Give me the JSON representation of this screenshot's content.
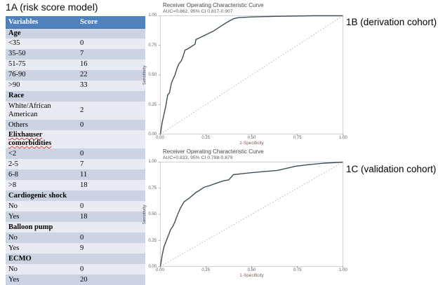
{
  "colors": {
    "table_header_bg": "#4f81bd",
    "band_dark": "#ccd3e2",
    "band_light": "#e9ebf3",
    "curve": "#3b4e57",
    "diagonal": "#a8a8a8",
    "plot_border": "#c8c8c8",
    "axis_label_text": "#7d5a50",
    "spellcheck": "#e03c31"
  },
  "chart_data": [
    {
      "type": "table",
      "title": "1A (risk score model)",
      "columns": [
        "Variables",
        "Score"
      ],
      "rows": [
        {
          "label": "Age",
          "score": "",
          "section": true
        },
        {
          "label": "<35",
          "score": "0"
        },
        {
          "label": "35-50",
          "score": "7"
        },
        {
          "label": "51-75",
          "score": "16"
        },
        {
          "label": "76-90",
          "score": "22"
        },
        {
          "label": ">90",
          "score": "33"
        },
        {
          "label": "Race",
          "score": "",
          "section": true
        },
        {
          "label": "White/African American",
          "score": "2"
        },
        {
          "label": "Others",
          "score": "0"
        },
        {
          "label": "Elixhauser comorbidities",
          "score": "",
          "section": true,
          "spellcheck": true
        },
        {
          "label": "<2",
          "score": "0"
        },
        {
          "label": "2-5",
          "score": "7"
        },
        {
          "label": "6-8",
          "score": "11"
        },
        {
          "label": ">8",
          "score": "18"
        },
        {
          "label": "Cardiogenic shock",
          "score": "",
          "section": true
        },
        {
          "label": "No",
          "score": "0"
        },
        {
          "label": "Yes",
          "score": "18"
        },
        {
          "label": "Balloon pump",
          "score": "",
          "section": true
        },
        {
          "label": "No",
          "score": "0"
        },
        {
          "label": "Yes",
          "score": "9"
        },
        {
          "label": "ECMO",
          "score": "",
          "section": true
        },
        {
          "label": "No",
          "score": "0"
        },
        {
          "label": "Yes",
          "score": "20"
        }
      ]
    },
    {
      "type": "line",
      "panel_label": "1B (derivation cohort)",
      "title": "Receiver Operating Characteristic Curve",
      "subtitle": "AUC=0.862, 95% CI 0.817-0.907",
      "xlabel": "1-Specificity",
      "ylabel": "Sensitivity",
      "xlim": [
        0,
        1
      ],
      "ylim": [
        0,
        1
      ],
      "xticks": [
        "0.00",
        "0.25",
        "0.50",
        "0.75",
        "1.00"
      ],
      "yticks": [
        "0.00",
        "0.25",
        "0.50",
        "0.75",
        "1.00"
      ],
      "legend": "none",
      "grid": false,
      "series": [
        {
          "name": "ROC curve",
          "x": [
            0,
            0.005,
            0.01,
            0.02,
            0.03,
            0.04,
            0.05,
            0.06,
            0.065,
            0.08,
            0.09,
            0.1,
            0.115,
            0.125,
            0.135,
            0.15,
            0.16,
            0.19,
            0.195,
            0.21,
            0.25,
            0.29,
            0.33,
            0.36,
            0.4,
            0.43,
            0.5,
            0.63,
            0.84,
            1.0
          ],
          "y": [
            0,
            0.05,
            0.1,
            0.17,
            0.24,
            0.33,
            0.35,
            0.43,
            0.45,
            0.5,
            0.55,
            0.59,
            0.62,
            0.66,
            0.71,
            0.72,
            0.73,
            0.76,
            0.8,
            0.81,
            0.84,
            0.87,
            0.91,
            0.94,
            0.975,
            0.985,
            0.99,
            0.995,
            1.0,
            1.0
          ]
        },
        {
          "name": "chance reference diagonal",
          "dotted": true,
          "x": [
            0,
            1
          ],
          "y": [
            0,
            1
          ]
        }
      ]
    },
    {
      "type": "line",
      "panel_label": "1C (validation cohort)",
      "title": "Receiver Operating Characteristic Curve",
      "subtitle": "AUC=0.833, 95% CI 0.788-0.879",
      "xlabel": "1-Specificity",
      "ylabel": "Sensitivity",
      "xlim": [
        0,
        1
      ],
      "ylim": [
        0,
        1
      ],
      "xticks": [
        "0.00",
        "0.25",
        "0.50",
        "0.75",
        "1.00"
      ],
      "yticks": [
        "0.00",
        "0.25",
        "0.50",
        "0.75",
        "1.00"
      ],
      "legend": "none",
      "grid": false,
      "series": [
        {
          "name": "ROC curve",
          "x": [
            0,
            0.01,
            0.02,
            0.04,
            0.055,
            0.07,
            0.08,
            0.095,
            0.11,
            0.13,
            0.155,
            0.175,
            0.195,
            0.215,
            0.24,
            0.27,
            0.31,
            0.345,
            0.375,
            0.4,
            0.45,
            0.505,
            0.57,
            0.64,
            0.69,
            0.74,
            0.81,
            0.9,
            1.0
          ],
          "y": [
            0,
            0.11,
            0.19,
            0.28,
            0.35,
            0.39,
            0.43,
            0.5,
            0.56,
            0.62,
            0.65,
            0.68,
            0.71,
            0.73,
            0.76,
            0.775,
            0.8,
            0.82,
            0.83,
            0.88,
            0.89,
            0.9,
            0.91,
            0.92,
            0.94,
            0.96,
            0.975,
            0.99,
            1.0
          ]
        },
        {
          "name": "chance reference diagonal",
          "dotted": true,
          "x": [
            0,
            1
          ],
          "y": [
            0,
            1
          ]
        }
      ]
    }
  ]
}
